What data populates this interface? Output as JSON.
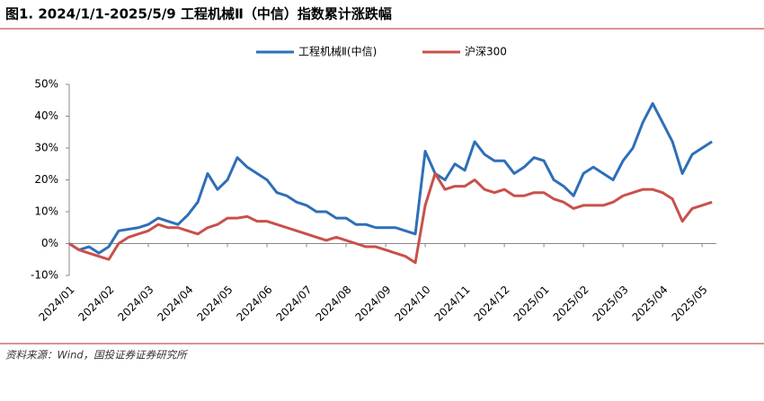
{
  "chart_data": {
    "type": "line",
    "title": "图1. 2024/1/1-2025/5/9 工程机械Ⅱ（中信）指数累计涨跌幅",
    "source": "资料来源：Wind，国投证券证券研究所",
    "x": [
      0,
      0.25,
      0.5,
      0.75,
      1,
      1.25,
      1.5,
      1.75,
      2,
      2.25,
      2.5,
      2.75,
      3,
      3.25,
      3.5,
      3.75,
      4,
      4.25,
      4.5,
      4.75,
      5,
      5.25,
      5.5,
      5.75,
      6,
      6.25,
      6.5,
      6.75,
      7,
      7.25,
      7.5,
      7.75,
      8,
      8.25,
      8.5,
      8.75,
      9,
      9.25,
      9.5,
      9.75,
      10,
      10.25,
      10.5,
      10.75,
      11,
      11.25,
      11.5,
      11.75,
      12,
      12.25,
      12.5,
      12.75,
      13,
      13.25,
      13.5,
      13.75,
      14,
      14.25,
      14.5,
      14.75,
      15,
      15.25,
      15.5,
      15.75,
      16,
      16.25
    ],
    "series": [
      {
        "name": "工程机械Ⅱ(中信)",
        "color": "#2e6fb7",
        "values": [
          0,
          -2,
          -1,
          -3,
          -1,
          4,
          4.5,
          5,
          6,
          8,
          7,
          6,
          9,
          13,
          22,
          17,
          20,
          27,
          24,
          22,
          20,
          16,
          15,
          13,
          12,
          10,
          10,
          8,
          8,
          6,
          6,
          5,
          5,
          5,
          4,
          3,
          29,
          22,
          20,
          25,
          23,
          32,
          28,
          26,
          26,
          22,
          24,
          27,
          26,
          20,
          18,
          15,
          22,
          24,
          22,
          20,
          26,
          30,
          38,
          44,
          38,
          32,
          22,
          28,
          30,
          32
        ]
      },
      {
        "name": "沪深300",
        "color": "#c9504b",
        "values": [
          0,
          -2,
          -3,
          -4,
          -5,
          0,
          2,
          3,
          4,
          6,
          5,
          5,
          4,
          3,
          5,
          6,
          8,
          8,
          8.5,
          7,
          7,
          6,
          5,
          4,
          3,
          2,
          1,
          2,
          1,
          0,
          -1,
          -1,
          -2,
          -3,
          -4,
          -6,
          12,
          22,
          17,
          18,
          18,
          20,
          17,
          16,
          17,
          15,
          15,
          16,
          16,
          14,
          13,
          11,
          12,
          12,
          12,
          13,
          15,
          16,
          17,
          17,
          16,
          14,
          7,
          11,
          12,
          13
        ]
      }
    ],
    "xlim": [
      0,
      16.36
    ],
    "xticks": [
      {
        "value": 0,
        "label": "2024/01"
      },
      {
        "value": 1,
        "label": "2024/02"
      },
      {
        "value": 2,
        "label": "2024/03"
      },
      {
        "value": 3,
        "label": "2024/04"
      },
      {
        "value": 4,
        "label": "2024/05"
      },
      {
        "value": 5,
        "label": "2024/06"
      },
      {
        "value": 6,
        "label": "2024/07"
      },
      {
        "value": 7,
        "label": "2024/08"
      },
      {
        "value": 8,
        "label": "2024/09"
      },
      {
        "value": 9,
        "label": "2024/10"
      },
      {
        "value": 10,
        "label": "2024/11"
      },
      {
        "value": 11,
        "label": "2024/12"
      },
      {
        "value": 12,
        "label": "2025/01"
      },
      {
        "value": 13,
        "label": "2025/02"
      },
      {
        "value": 14,
        "label": "2025/03"
      },
      {
        "value": 15,
        "label": "2025/04"
      },
      {
        "value": 16,
        "label": "2025/05"
      }
    ],
    "ylim": [
      -10,
      50
    ],
    "yticks": [
      {
        "value": -10,
        "label": "-10%"
      },
      {
        "value": 0,
        "label": "0%"
      },
      {
        "value": 10,
        "label": "10%"
      },
      {
        "value": 20,
        "label": "20%"
      },
      {
        "value": 30,
        "label": "30%"
      },
      {
        "value": 40,
        "label": "40%"
      },
      {
        "value": 50,
        "label": "50%"
      }
    ],
    "legend": "top"
  }
}
